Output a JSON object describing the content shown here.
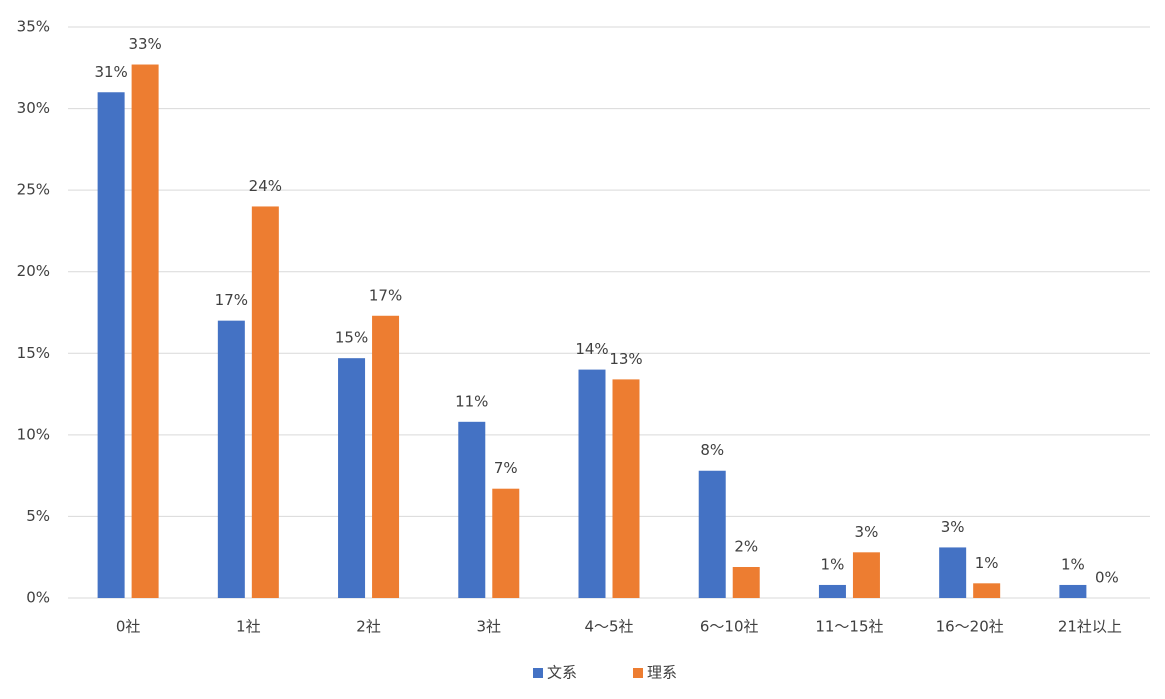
{
  "chart_data": {
    "type": "bar",
    "categories": [
      "0社",
      "1社",
      "2社",
      "3社",
      "4～5社",
      "6～10社",
      "11～15社",
      "16～20社",
      "21社以上"
    ],
    "series": [
      {
        "name": "文系",
        "color": "#4472c4",
        "values": [
          31,
          17,
          14.7,
          10.8,
          14,
          7.8,
          0.8,
          3.1,
          0.8
        ],
        "value_labels": [
          "31%",
          "17%",
          "15%",
          "11%",
          "14%",
          "8%",
          "1%",
          "3%",
          "1%"
        ]
      },
      {
        "name": "理系",
        "color": "#ed7d31",
        "values": [
          32.7,
          24,
          17.3,
          6.7,
          13.4,
          1.9,
          2.8,
          0.9,
          0
        ],
        "value_labels": [
          "33%",
          "24%",
          "17%",
          "7%",
          "13%",
          "2%",
          "3%",
          "1%",
          "0%"
        ]
      }
    ],
    "ylim": [
      0,
      35
    ],
    "yticks": [
      {
        "value": 0,
        "label": "0%"
      },
      {
        "value": 5,
        "label": "5%"
      },
      {
        "value": 10,
        "label": "10%"
      },
      {
        "value": 15,
        "label": "15%"
      },
      {
        "value": 20,
        "label": "20%"
      },
      {
        "value": 25,
        "label": "25%"
      },
      {
        "value": 30,
        "label": "30%"
      },
      {
        "value": 35,
        "label": "35%"
      }
    ],
    "grid": true,
    "legend": "bottom"
  }
}
